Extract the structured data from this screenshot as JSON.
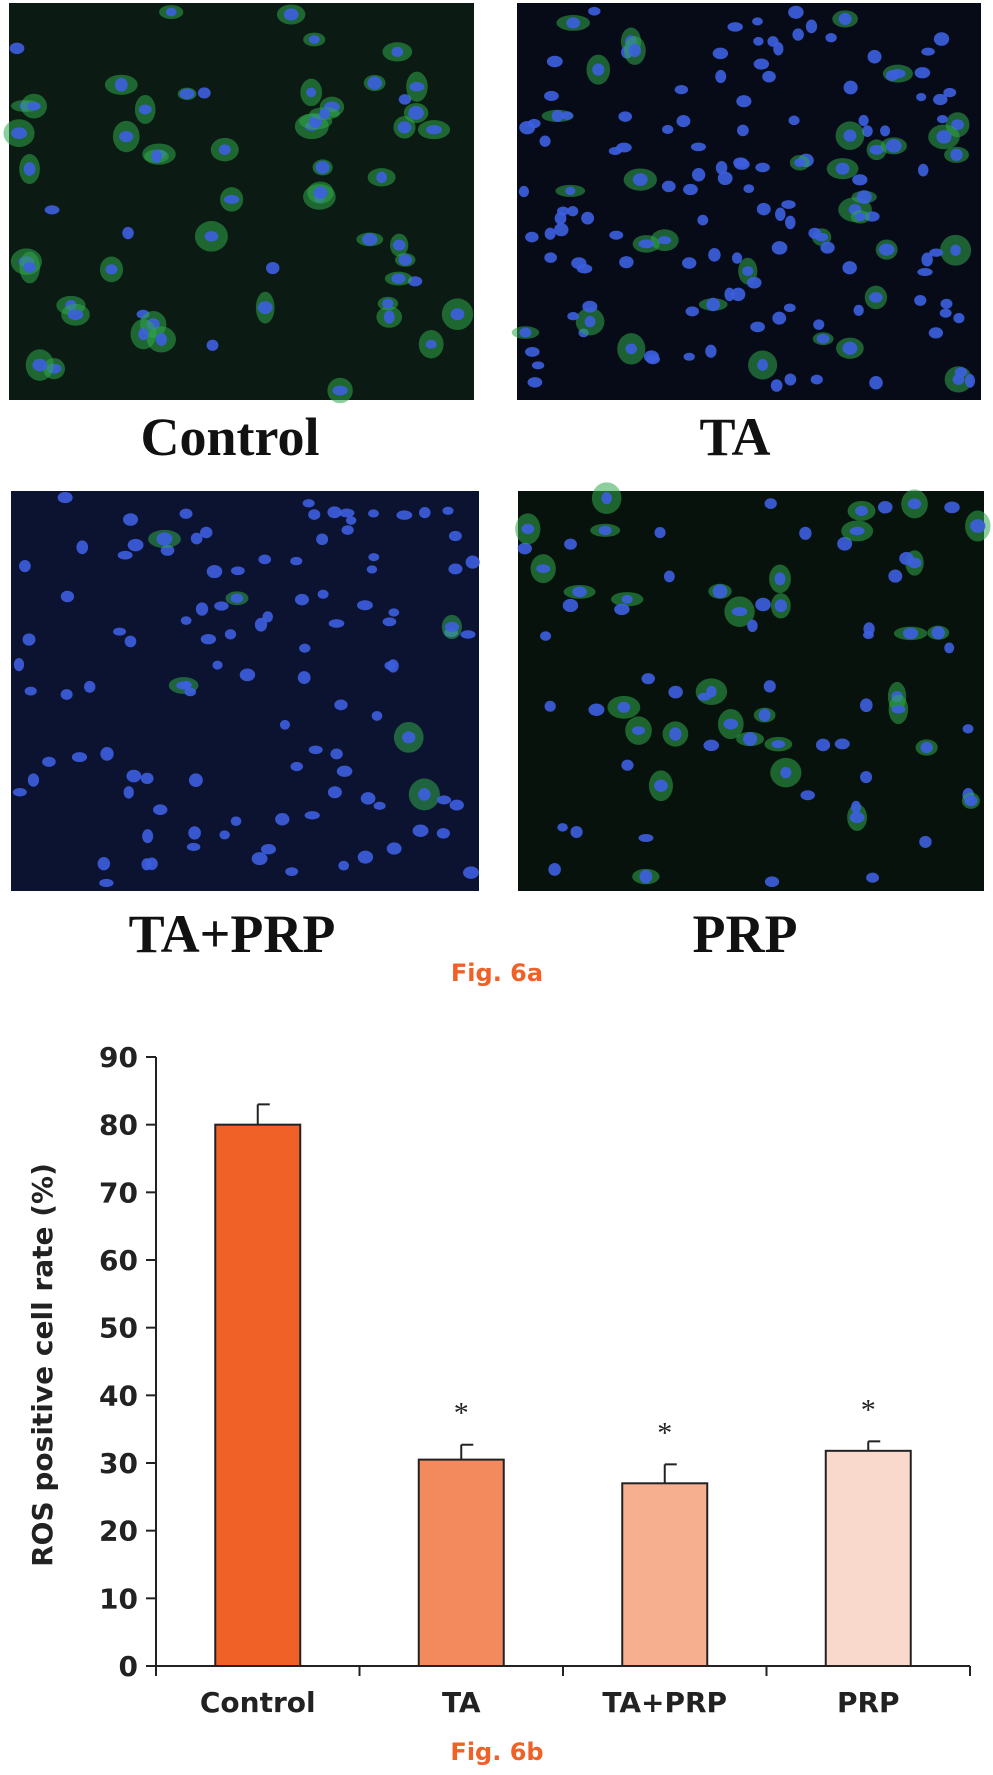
{
  "panels": [
    {
      "label": "Control"
    },
    {
      "label": "TA"
    },
    {
      "label": "TA+PRP"
    },
    {
      "label": "PRP"
    }
  ],
  "caption_a": "Fig. 6a",
  "caption_b": "Fig. 6b",
  "chart_data": {
    "type": "bar",
    "y_label": "ROS positive cell rate (%)",
    "categories": [
      "Control",
      "TA",
      "TA+PRP",
      "PRP"
    ],
    "values": [
      80,
      30.5,
      27,
      31.8
    ],
    "errors": [
      3,
      2.2,
      2.8,
      1.4
    ],
    "annotations": [
      null,
      "*",
      "*",
      "*"
    ],
    "colors": [
      "#ef6127",
      "#f38a5e",
      "#f6b08f",
      "#f8d9cb"
    ],
    "ylim": [
      0,
      90
    ],
    "yticks": [
      0,
      10,
      20,
      30,
      40,
      50,
      60,
      70,
      80,
      90
    ]
  }
}
